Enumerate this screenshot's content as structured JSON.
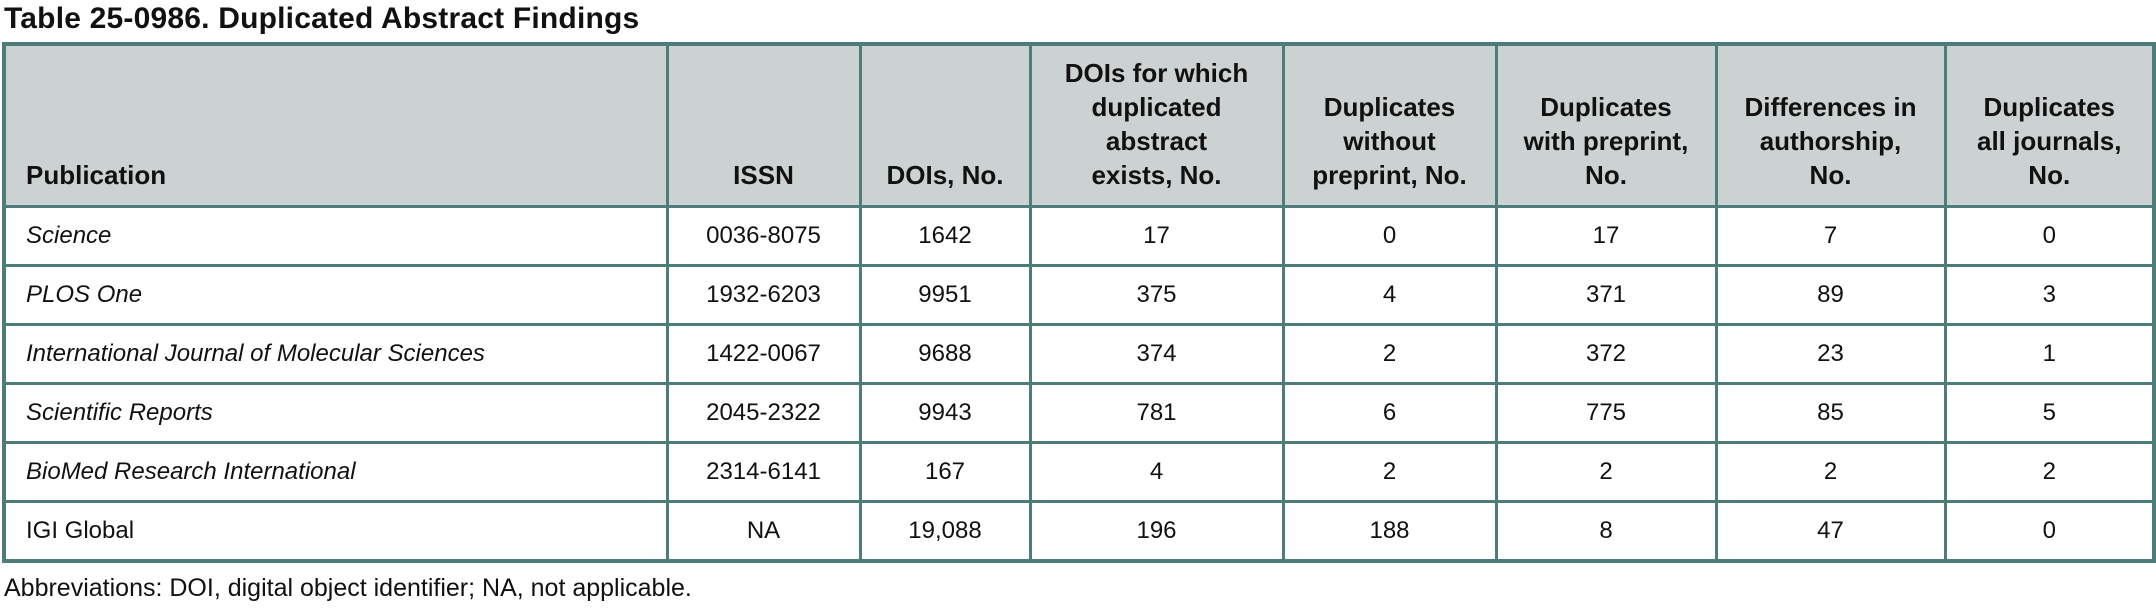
{
  "title": "Table 25-0986. Duplicated Abstract Findings",
  "footnote": "Abbreviations: DOI, digital object identifier; NA, not applicable.",
  "colors": {
    "border": "#4e7c7b",
    "header_bg": "#cbd2d1"
  },
  "table": {
    "columns": [
      {
        "label": "Publication",
        "align": "left"
      },
      {
        "label": "ISSN",
        "align": "center"
      },
      {
        "label": "DOIs, No.",
        "align": "center"
      },
      {
        "label": "DOIs for which\nduplicated\nabstract\nexists, No.",
        "align": "center"
      },
      {
        "label": "Duplicates\nwithout\npreprint, No.",
        "align": "center"
      },
      {
        "label": "Duplicates\nwith preprint,\nNo.",
        "align": "center"
      },
      {
        "label": "Differences in\nauthorship,\nNo.",
        "align": "center"
      },
      {
        "label": "Duplicates\nall journals,\nNo.",
        "align": "center"
      }
    ],
    "rows": [
      {
        "italic": true,
        "cells": [
          "Science",
          "0036-8075",
          "1642",
          "17",
          "0",
          "17",
          "7",
          "0"
        ]
      },
      {
        "italic": true,
        "cells": [
          "PLOS One",
          "1932-6203",
          "9951",
          "375",
          "4",
          "371",
          "89",
          "3"
        ]
      },
      {
        "italic": true,
        "cells": [
          "International Journal of Molecular Sciences",
          "1422-0067",
          "9688",
          "374",
          "2",
          "372",
          "23",
          "1"
        ]
      },
      {
        "italic": true,
        "cells": [
          "Scientific Reports",
          "2045-2322",
          "9943",
          "781",
          "6",
          "775",
          "85",
          "5"
        ]
      },
      {
        "italic": true,
        "cells": [
          "BioMed Research International",
          "2314-6141",
          "167",
          "4",
          "2",
          "2",
          "2",
          "2"
        ]
      },
      {
        "italic": false,
        "cells": [
          "IGI Global",
          "NA",
          "19,088",
          "196",
          "188",
          "8",
          "47",
          "0"
        ]
      }
    ]
  }
}
